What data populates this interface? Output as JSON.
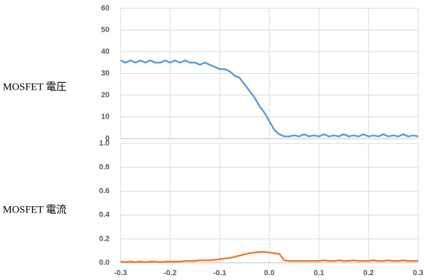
{
  "chart_data": [
    {
      "type": "line",
      "ylabel": "MOSFET 電圧",
      "x": [
        -0.3,
        -0.29,
        -0.28,
        -0.27,
        -0.26,
        -0.25,
        -0.24,
        -0.23,
        -0.22,
        -0.21,
        -0.2,
        -0.19,
        -0.18,
        -0.17,
        -0.16,
        -0.15,
        -0.14,
        -0.13,
        -0.12,
        -0.11,
        -0.1,
        -0.09,
        -0.08,
        -0.07,
        -0.06,
        -0.05,
        -0.04,
        -0.03,
        -0.02,
        -0.01,
        0,
        0.01,
        0.02,
        0.03,
        0.04,
        0.05,
        0.06,
        0.07,
        0.08,
        0.09,
        0.1,
        0.11,
        0.12,
        0.13,
        0.14,
        0.15,
        0.16,
        0.17,
        0.18,
        0.19,
        0.2,
        0.21,
        0.22,
        0.23,
        0.24,
        0.25,
        0.26,
        0.27,
        0.28,
        0.29,
        0.3
      ],
      "series": [
        {
          "color": "#5b9bd5",
          "values": [
            36,
            35,
            36,
            35,
            36,
            35,
            36,
            35,
            35,
            36,
            35,
            36,
            35,
            36,
            35,
            35,
            34,
            35,
            34,
            33,
            32,
            32,
            31,
            29,
            28,
            25,
            22,
            19,
            15,
            12,
            8,
            4,
            2,
            1,
            1,
            1.5,
            1,
            2,
            1,
            1.5,
            1,
            2,
            1,
            1.5,
            1,
            2,
            1,
            1.5,
            1,
            2,
            1,
            1.5,
            1,
            2,
            1,
            1.5,
            1,
            2,
            1,
            1.5,
            1
          ]
        }
      ],
      "xlim": [
        -0.3,
        0.3
      ],
      "xticks": [
        -0.3,
        -0.2,
        -0.1,
        0,
        0.1,
        0.2,
        0.3
      ],
      "ylim": [
        0,
        60
      ],
      "yticks": [
        0,
        10,
        20,
        30,
        40,
        50,
        60
      ],
      "grid": true
    },
    {
      "type": "line",
      "ylabel": "MOSFET 電流",
      "x": [
        -0.3,
        -0.29,
        -0.28,
        -0.27,
        -0.26,
        -0.25,
        -0.24,
        -0.23,
        -0.22,
        -0.21,
        -0.2,
        -0.19,
        -0.18,
        -0.17,
        -0.16,
        -0.15,
        -0.14,
        -0.13,
        -0.12,
        -0.11,
        -0.1,
        -0.09,
        -0.08,
        -0.07,
        -0.06,
        -0.05,
        -0.04,
        -0.03,
        -0.02,
        -0.01,
        0,
        0.01,
        0.02,
        0.03,
        0.04,
        0.05,
        0.06,
        0.07,
        0.08,
        0.09,
        0.1,
        0.11,
        0.12,
        0.13,
        0.14,
        0.15,
        0.16,
        0.17,
        0.18,
        0.19,
        0.2,
        0.21,
        0.22,
        0.23,
        0.24,
        0.25,
        0.26,
        0.27,
        0.28,
        0.29,
        0.3
      ],
      "series": [
        {
          "color": "#ed7d31",
          "values": [
            0.01,
            0.005,
            0.01,
            0.005,
            0.01,
            0.005,
            0.01,
            0.01,
            0.005,
            0.01,
            0.01,
            0.01,
            0.01,
            0.015,
            0.015,
            0.015,
            0.02,
            0.02,
            0.02,
            0.025,
            0.03,
            0.035,
            0.04,
            0.05,
            0.06,
            0.07,
            0.08,
            0.085,
            0.09,
            0.09,
            0.085,
            0.08,
            0.075,
            0.02,
            0.015,
            0.015,
            0.015,
            0.015,
            0.015,
            0.015,
            0.015,
            0.02,
            0.015,
            0.015,
            0.02,
            0.015,
            0.015,
            0.02,
            0.015,
            0.015,
            0.015,
            0.02,
            0.015,
            0.015,
            0.02,
            0.015,
            0.015,
            0.02,
            0.015,
            0.015,
            0.015
          ]
        }
      ],
      "xlim": [
        -0.3,
        0.3
      ],
      "xticks": [
        -0.3,
        -0.2,
        -0.1,
        {
          "value": 0,
          "label": "0.0"
        },
        0.1,
        0.2,
        0.3
      ],
      "ylim": [
        0,
        1
      ],
      "yticks": [
        {
          "value": 0,
          "label": "0.0"
        },
        0.2,
        0.4,
        0.6,
        0.8,
        {
          "value": 1,
          "label": "1.0"
        }
      ],
      "grid": true
    }
  ]
}
